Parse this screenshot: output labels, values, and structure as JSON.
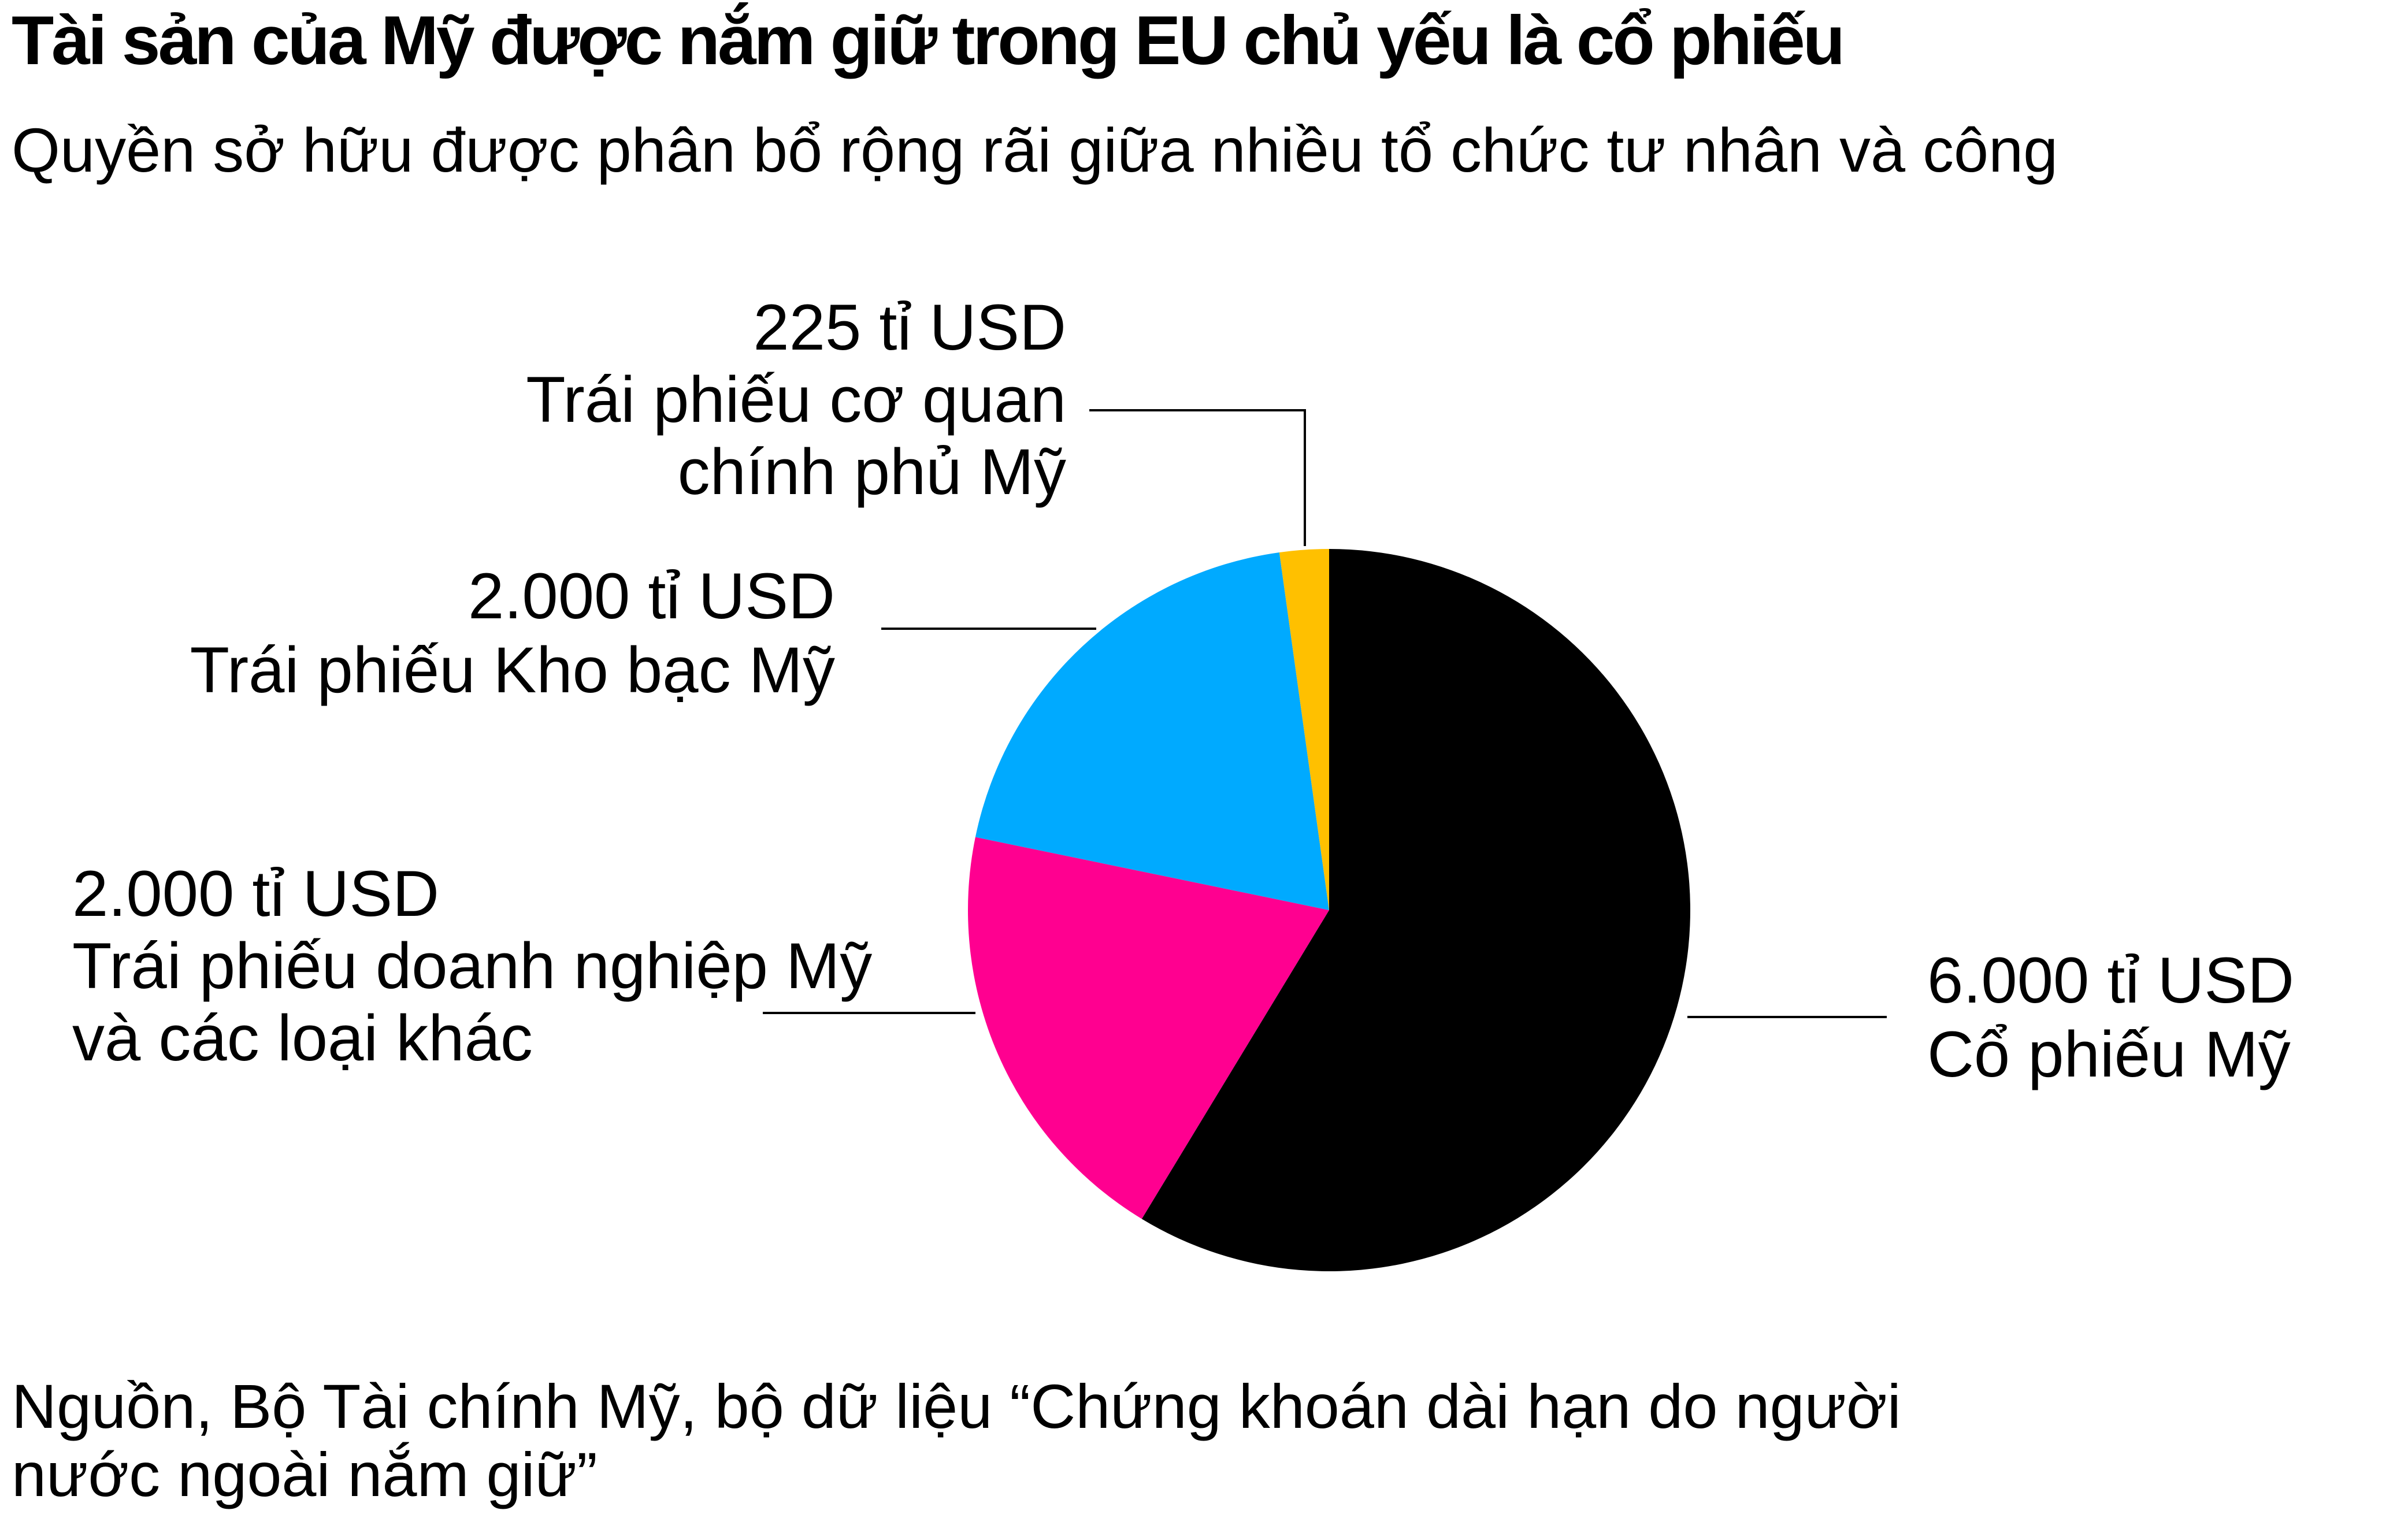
{
  "title": "Tài sản của Mỹ được nắm giữ trong EU chủ yếu là cổ phiếu",
  "subtitle": "Quyền sở hữu được phân bổ rộng rãi giữa nhiều tổ chức tư nhân và công",
  "source": {
    "line1": "Nguồn, Bộ Tài chính Mỹ, bộ dữ liệu “Chứng khoán dài hạn do người",
    "line2": "nước ngoài nắm giữ”"
  },
  "chart_data": {
    "type": "pie",
    "title": "Tài sản của Mỹ được nắm giữ trong EU chủ yếu là cổ phiếu",
    "subtitle": "Quyền sở hữu được phân bổ rộng rãi giữa nhiều tổ chức tư nhân và công",
    "unit": "tỉ USD",
    "slices": [
      {
        "name": "Cổ phiếu Mỹ",
        "value": 6000,
        "color": "#000000",
        "label_lines": [
          "6.000 tỉ USD",
          "Cổ phiếu Mỹ"
        ]
      },
      {
        "name": "Trái phiếu doanh nghiệp Mỹ và các loại khác",
        "value": 2000,
        "color": "#ff0090",
        "label_lines": [
          "2.000 tỉ USD",
          "Trái phiếu doanh nghiệp Mỹ",
          "và các loại khác"
        ]
      },
      {
        "name": "Trái phiếu Kho bạc Mỹ",
        "value": 2000,
        "color": "#00aaff",
        "label_lines": [
          "2.000 tỉ USD",
          "Trái phiếu Kho bạc Mỹ"
        ]
      },
      {
        "name": "Trái phiếu cơ quan chính phủ Mỹ",
        "value": 225,
        "color": "#ffc000",
        "label_lines": [
          "225 tỉ USD",
          "Trái phiếu cơ quan",
          "chính phủ Mỹ"
        ]
      }
    ],
    "start_angle_deg": 0,
    "direction": "clockwise"
  }
}
